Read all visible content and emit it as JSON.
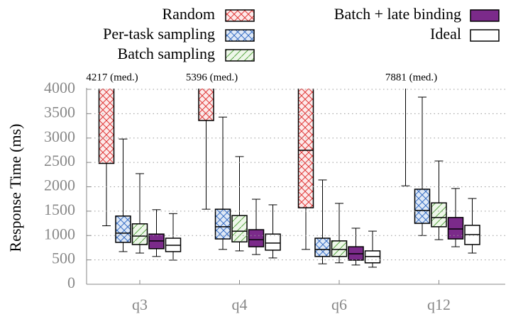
{
  "chart_data": {
    "type": "box",
    "y_label": "Response Time (ms)",
    "categories": [
      "q3",
      "q4",
      "q6",
      "q12"
    ],
    "ylim": [
      0,
      4000
    ],
    "yticks": [
      0,
      500,
      1000,
      1500,
      2000,
      2500,
      3000,
      3500,
      4000
    ],
    "grid": true,
    "series": [
      {
        "name": "Random",
        "color": "#e03a3a",
        "fill": "#fdeaea",
        "pattern": "cross",
        "low": [
          1200,
          1540,
          715,
          2020
        ],
        "q1": [
          2480,
          3360,
          1570,
          null
        ],
        "median": [
          4217,
          5396,
          2750,
          7881
        ],
        "q3": [
          null,
          null,
          null,
          null
        ],
        "high": [
          null,
          null,
          null,
          null
        ],
        "median_labels": [
          "4217 (med.)",
          "5396 (med.)",
          null,
          "7881 (med.)"
        ]
      },
      {
        "name": "Per-task sampling",
        "color": "#3a6fc4",
        "fill": "#dfe9f7",
        "pattern": "cross",
        "low": [
          670,
          715,
          420,
          1000
        ],
        "q1": [
          860,
          930,
          570,
          1250
        ],
        "median": [
          1050,
          1180,
          715,
          1515
        ],
        "q3": [
          1400,
          1540,
          945,
          1950
        ],
        "high": [
          2980,
          3430,
          2140,
          3840
        ]
      },
      {
        "name": "Batch sampling",
        "color": "#5aa845",
        "fill": "#eef7e9",
        "pattern": "diagonal",
        "low": [
          640,
          685,
          440,
          915
        ],
        "q1": [
          815,
          870,
          570,
          1180
        ],
        "median": [
          990,
          1090,
          715,
          1370
        ],
        "q3": [
          1240,
          1410,
          890,
          1670
        ],
        "high": [
          2270,
          2620,
          1660,
          2530
        ]
      },
      {
        "name": "Batch + late binding",
        "color": "#7b2a8a",
        "fill": "#7b2a8a",
        "pattern": "solid",
        "low": [
          570,
          610,
          395,
          770
        ],
        "q1": [
          730,
          770,
          495,
          930
        ],
        "median": [
          890,
          915,
          625,
          1135
        ],
        "q3": [
          1030,
          1120,
          770,
          1370
        ],
        "high": [
          1530,
          1745,
          1150,
          1965
        ]
      },
      {
        "name": "Ideal",
        "color": "#000000",
        "fill": "#ffffff",
        "pattern": "solid",
        "low": [
          495,
          540,
          350,
          640
        ],
        "q1": [
          670,
          700,
          440,
          815
        ],
        "median": [
          800,
          845,
          570,
          1020
        ],
        "q3": [
          945,
          1030,
          685,
          1210
        ],
        "high": [
          1450,
          1630,
          1090,
          1760
        ]
      }
    ]
  }
}
